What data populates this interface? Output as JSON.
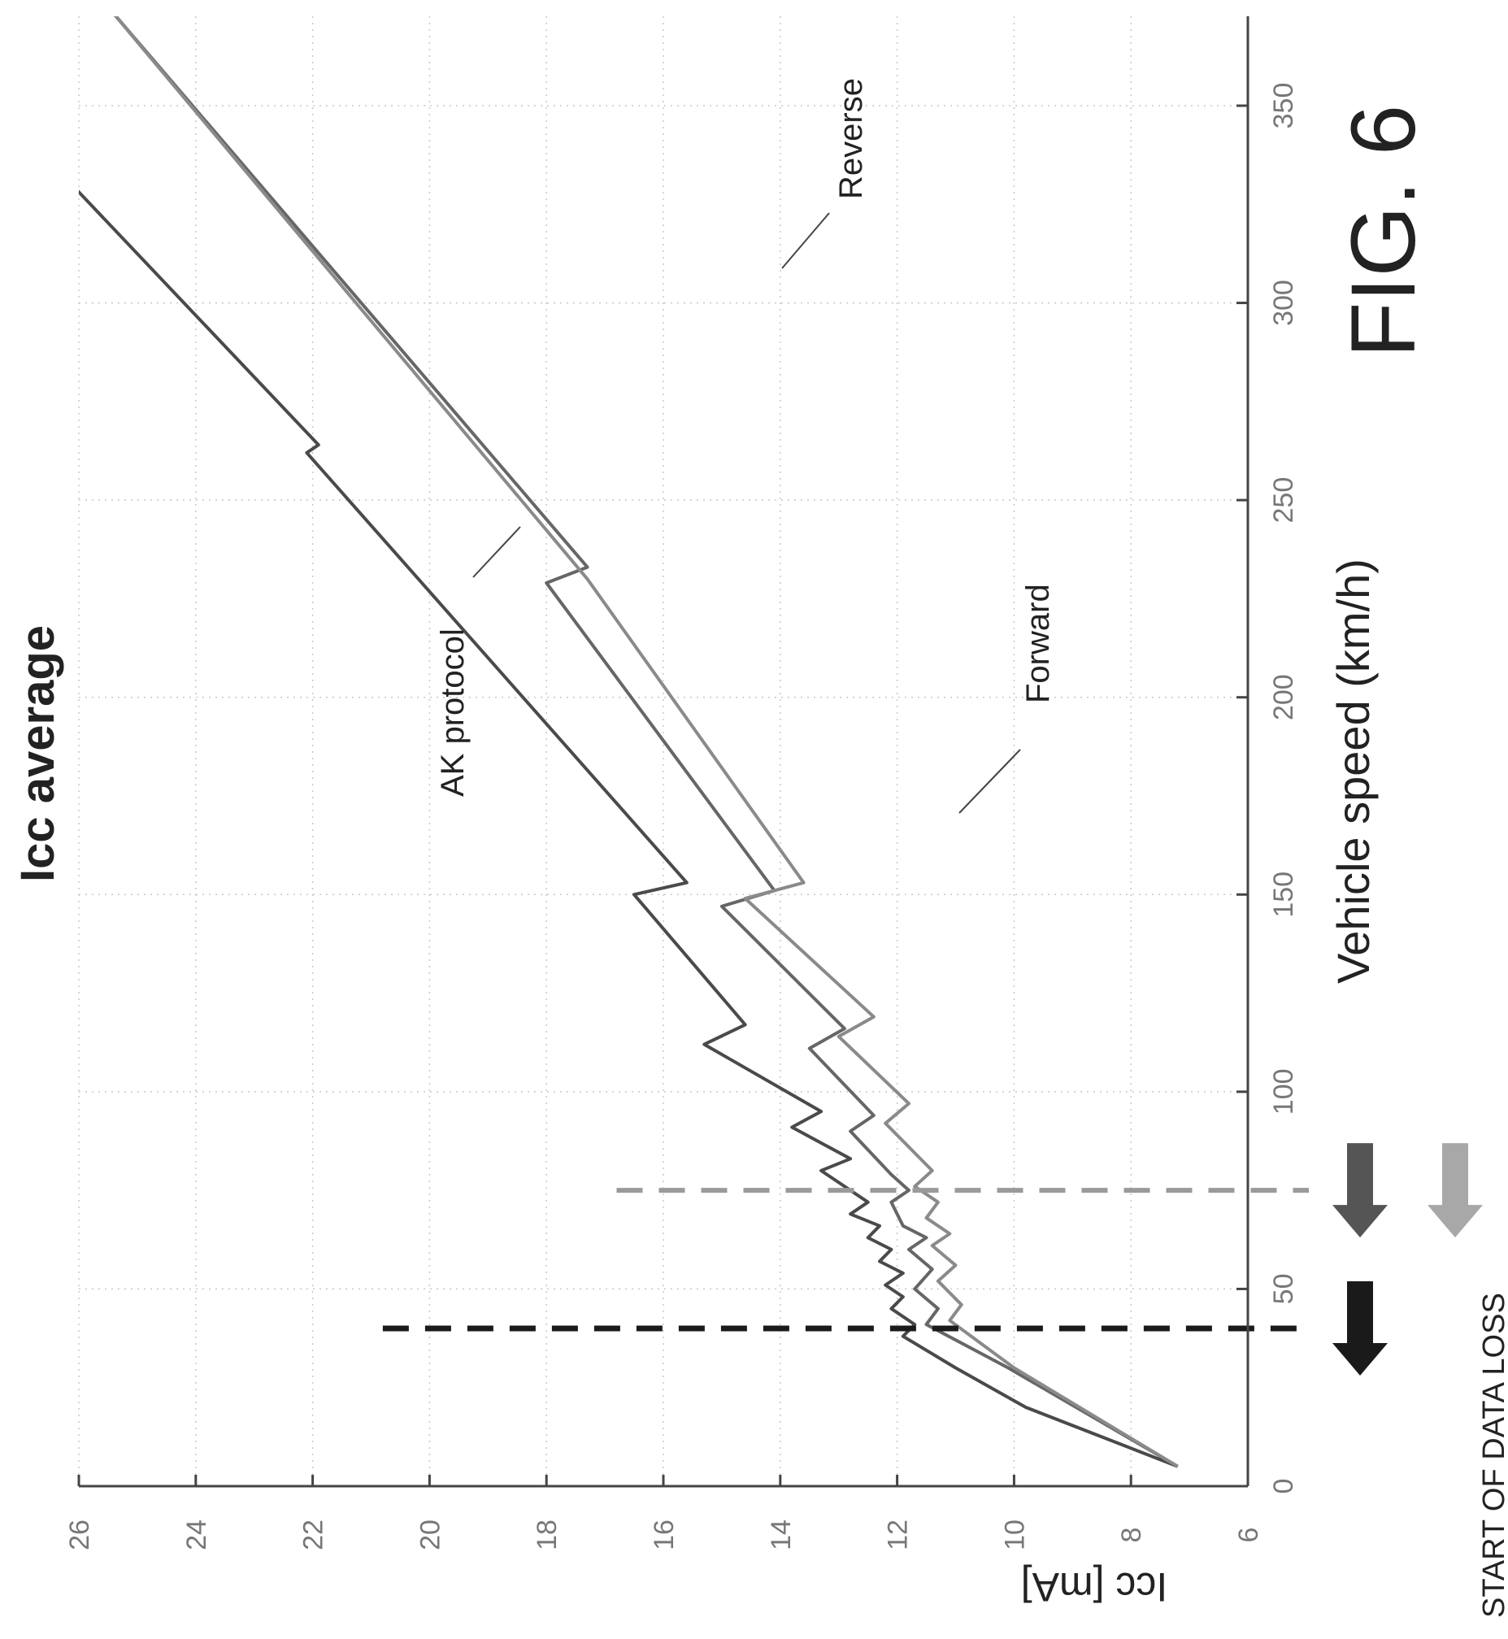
{
  "figure_label": "FIG. 6",
  "annotation": "START OF DATA LOSS",
  "chart_data": {
    "type": "line",
    "title": "Icc average",
    "xlabel": "Vehicle speed (km/h)",
    "ylabel": "Icc [mA]",
    "xlim": [
      0,
      375
    ],
    "ylim": [
      6,
      26
    ],
    "x_ticks": [
      0,
      50,
      100,
      150,
      200,
      250,
      300,
      350
    ],
    "y_ticks": [
      6,
      8,
      10,
      12,
      14,
      16,
      18,
      20,
      22,
      24,
      26
    ],
    "grid": true,
    "series": [
      {
        "name": "AK protocol",
        "color": "#4a4a4a",
        "x": [
          5,
          20,
          30,
          38,
          41,
          45,
          48,
          51,
          54,
          57,
          60,
          63,
          66,
          69,
          72,
          80,
          83,
          91,
          95,
          112,
          117,
          150,
          153,
          262,
          264,
          375
        ],
        "y": [
          7.2,
          9.8,
          11.0,
          11.9,
          11.7,
          12.1,
          11.9,
          12.2,
          11.9,
          12.3,
          12.1,
          12.5,
          12.3,
          12.8,
          12.5,
          13.3,
          12.8,
          13.8,
          13.3,
          15.3,
          14.6,
          16.5,
          15.6,
          22.1,
          21.9,
          29.0
        ]
      },
      {
        "name": "Reverse",
        "color": "#666666",
        "x": [
          5,
          30,
          41,
          45,
          50,
          55,
          60,
          63,
          66,
          72,
          75,
          79,
          90,
          94,
          111,
          116,
          147,
          151,
          229,
          233,
          375
        ],
        "y": [
          7.2,
          10.1,
          11.5,
          11.3,
          11.7,
          11.4,
          11.8,
          11.5,
          11.9,
          12.1,
          11.8,
          12.1,
          12.8,
          12.4,
          13.5,
          12.9,
          15.0,
          14.1,
          18.0,
          17.3,
          25.5
        ]
      },
      {
        "name": "Forward",
        "color": "#8a8a8a",
        "x": [
          5,
          30,
          42,
          46,
          52,
          56,
          61,
          64,
          68,
          72,
          76,
          80,
          92,
          97,
          114,
          119,
          149,
          153,
          230,
          375
        ],
        "y": [
          7.2,
          10.0,
          11.1,
          10.9,
          11.3,
          11.0,
          11.4,
          11.1,
          11.5,
          11.3,
          11.7,
          11.4,
          12.2,
          11.8,
          13.0,
          12.4,
          14.6,
          13.6,
          17.3,
          25.5
        ]
      }
    ],
    "markers": [
      {
        "x": 40,
        "style": "dashed",
        "color": "#1a1a1a",
        "y_top": 20.8
      },
      {
        "x": 75,
        "style": "dashed",
        "color": "#9a9a9a",
        "y_top": 16.8
      }
    ]
  }
}
